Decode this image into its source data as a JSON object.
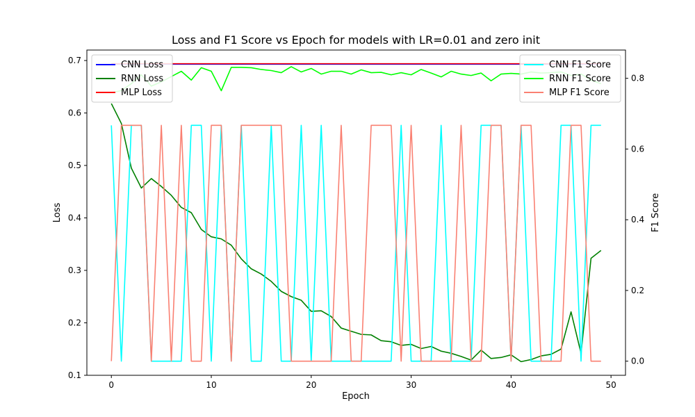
{
  "chart_data": {
    "type": "line",
    "title": "Loss and F1 Score vs Epoch for models with LR=0.01 and zero init",
    "xlabel": "Epoch",
    "ylabel": "Loss",
    "y2label": "F1 Score",
    "xlim": [
      -2.45,
      51.45
    ],
    "ylim": [
      0.1,
      0.72
    ],
    "y2lim": [
      -0.04,
      0.88
    ],
    "xticks": [
      "0",
      "10",
      "20",
      "30",
      "40",
      "50"
    ],
    "yticks": [
      "0.1",
      "0.2",
      "0.3",
      "0.4",
      "0.5",
      "0.6",
      "0.7"
    ],
    "y2ticks": [
      "0.0",
      "0.2",
      "0.4",
      "0.6",
      "0.8"
    ],
    "grid": false,
    "legend_left_position": "top-left",
    "legend_right_position": "top-right",
    "x": [
      0,
      1,
      2,
      3,
      4,
      5,
      6,
      7,
      8,
      9,
      10,
      11,
      12,
      13,
      14,
      15,
      16,
      17,
      18,
      19,
      20,
      21,
      22,
      23,
      24,
      25,
      26,
      27,
      28,
      29,
      30,
      31,
      32,
      33,
      34,
      35,
      36,
      37,
      38,
      39,
      40,
      41,
      42,
      43,
      44,
      45,
      46,
      47,
      48,
      49
    ],
    "series_left": [
      {
        "name": "CNN Loss",
        "color": "#0000ff",
        "values": [
          0.693,
          0.693,
          0.693,
          0.693,
          0.693,
          0.693,
          0.693,
          0.693,
          0.693,
          0.693,
          0.693,
          0.693,
          0.693,
          0.693,
          0.693,
          0.693,
          0.693,
          0.693,
          0.693,
          0.693,
          0.693,
          0.693,
          0.693,
          0.693,
          0.693,
          0.693,
          0.693,
          0.693,
          0.693,
          0.693,
          0.693,
          0.693,
          0.693,
          0.693,
          0.693,
          0.693,
          0.693,
          0.693,
          0.693,
          0.693,
          0.693,
          0.693,
          0.693,
          0.693,
          0.693,
          0.693,
          0.693,
          0.693,
          0.693,
          0.693
        ]
      },
      {
        "name": "RNN Loss",
        "color": "#008000",
        "values": [
          0.618,
          0.58,
          0.495,
          0.457,
          0.475,
          0.46,
          0.443,
          0.42,
          0.41,
          0.378,
          0.364,
          0.36,
          0.348,
          0.322,
          0.303,
          0.293,
          0.279,
          0.26,
          0.25,
          0.243,
          0.222,
          0.223,
          0.212,
          0.19,
          0.184,
          0.178,
          0.177,
          0.166,
          0.164,
          0.157,
          0.159,
          0.151,
          0.155,
          0.146,
          0.142,
          0.136,
          0.129,
          0.148,
          0.132,
          0.134,
          0.139,
          0.126,
          0.13,
          0.137,
          0.14,
          0.15,
          0.221,
          0.142,
          0.323,
          0.338
        ]
      },
      {
        "name": "MLP Loss",
        "color": "#ff0000",
        "values": [
          0.694,
          0.694,
          0.694,
          0.694,
          0.694,
          0.694,
          0.694,
          0.694,
          0.694,
          0.694,
          0.694,
          0.694,
          0.694,
          0.694,
          0.694,
          0.694,
          0.694,
          0.694,
          0.694,
          0.694,
          0.694,
          0.694,
          0.694,
          0.694,
          0.694,
          0.694,
          0.694,
          0.694,
          0.694,
          0.694,
          0.694,
          0.694,
          0.694,
          0.694,
          0.694,
          0.694,
          0.694,
          0.694,
          0.694,
          0.694,
          0.694,
          0.694,
          0.694,
          0.694,
          0.694,
          0.694,
          0.694,
          0.694,
          0.694,
          0.694
        ]
      }
    ],
    "series_right": [
      {
        "name": "CNN F1 Score",
        "color": "#00ffff",
        "values": [
          0.667,
          0,
          0.667,
          0.667,
          0,
          0,
          0,
          0,
          0.667,
          0.667,
          0,
          0.667,
          0,
          0.667,
          0,
          0,
          0.667,
          0,
          0,
          0.667,
          0,
          0.667,
          0,
          0,
          0,
          0,
          0,
          0,
          0,
          0.667,
          0,
          0,
          0,
          0.667,
          0,
          0,
          0,
          0.667,
          0.667,
          0.667,
          0,
          0.667,
          0,
          0,
          0,
          0.667,
          0.667,
          0,
          0.667,
          0.667
        ]
      },
      {
        "name": "RNN F1 Score",
        "color": "#00ff00",
        "values": [
          0.76,
          0.765,
          0.785,
          0.81,
          0.778,
          0.79,
          0.805,
          0.82,
          0.795,
          0.83,
          0.82,
          0.765,
          0.831,
          0.831,
          0.83,
          0.825,
          0.822,
          0.816,
          0.833,
          0.818,
          0.828,
          0.812,
          0.82,
          0.82,
          0.812,
          0.824,
          0.816,
          0.817,
          0.81,
          0.816,
          0.81,
          0.825,
          0.815,
          0.804,
          0.82,
          0.812,
          0.808,
          0.815,
          0.793,
          0.812,
          0.814,
          0.812,
          0.818,
          0.815,
          0.816,
          0.818,
          0.808,
          0.812,
          0.795,
          0.785
        ]
      },
      {
        "name": "MLP F1 Score",
        "color": "#fa8072",
        "values": [
          0,
          0.667,
          0.667,
          0.667,
          0,
          0.667,
          0,
          0.667,
          0,
          0,
          0.667,
          0.667,
          0,
          0.667,
          0.667,
          0.667,
          0.667,
          0.667,
          0,
          0,
          0,
          0,
          0,
          0.667,
          0,
          0,
          0.667,
          0.667,
          0.667,
          0,
          0.667,
          0,
          0,
          0,
          0,
          0.667,
          0,
          0,
          0.667,
          0.667,
          0,
          0.667,
          0.667,
          0,
          0,
          0,
          0.667,
          0.667,
          0,
          0
        ]
      }
    ]
  }
}
